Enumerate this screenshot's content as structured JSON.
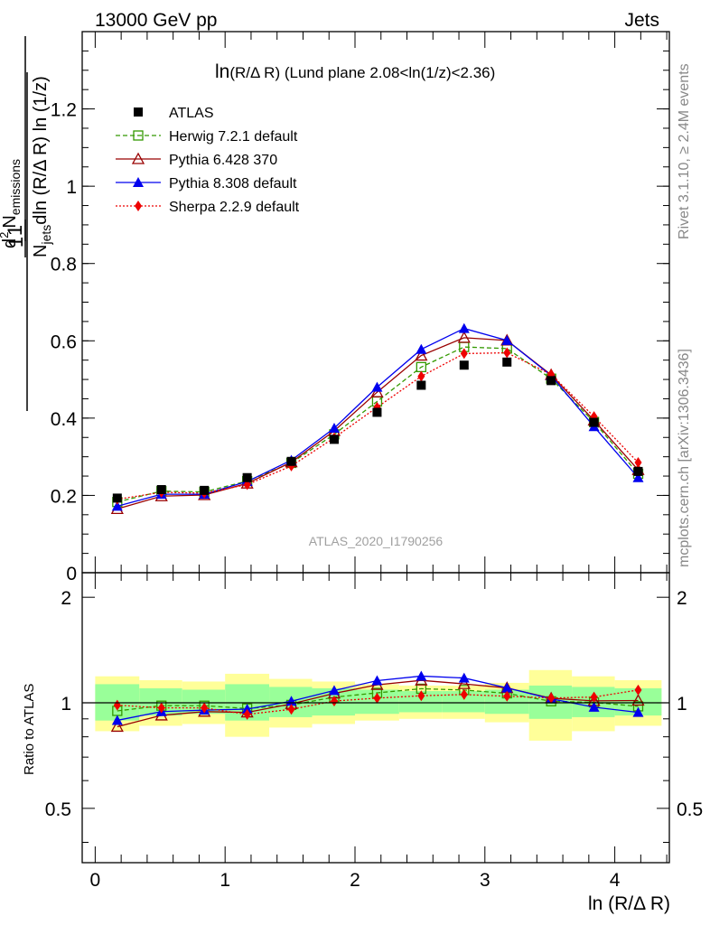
{
  "header": {
    "energy_label": "13000 GeV pp",
    "process_label": "Jets"
  },
  "side_labels": {
    "rivet": "Rivet 3.1.10, ≥ 2.4M events",
    "mcplots": "mcplots.cern.ch [arXiv:1306.3436]"
  },
  "watermark": "ATLAS_2020_I1790256",
  "top_title": {
    "main": "ln",
    "arg": "(R/Δ R)",
    "rest": " (Lund plane 2.08<ln(1/z)<2.36)"
  },
  "y_axis_label": {
    "one": "1",
    "d2": "d",
    "d2_sup": "2",
    "n": "N",
    "n_sub": "emissions",
    "njets": "N",
    "njets_sub": "jets",
    "den_rest": "dln (R/Δ R) ln (1/z)"
  },
  "ratio_y_label": "Ratio to ATLAS",
  "x_axis_label": "ln (R/Δ R)",
  "colors": {
    "atlas": "#000000",
    "herwig": "#339900",
    "pythia6": "#990000",
    "pythia8": "#0000ee",
    "sherpa": "#ee0000",
    "band_inner": "#99ff99",
    "band_outer": "#ffff99"
  },
  "chart_data": {
    "type": "line",
    "xlabel": "ln (R/Δ R)",
    "xlim": [
      -0.1,
      4.42
    ],
    "main_ylim": [
      0,
      1.4
    ],
    "ratio_ylim": [
      0.35,
      2.35
    ],
    "main_yticks": [
      "0",
      "0.2",
      "0.4",
      "0.6",
      "0.8",
      "1",
      "1.2"
    ],
    "main_ytick_values": [
      0,
      0.2,
      0.4,
      0.6,
      0.8,
      1.0,
      1.2
    ],
    "ratio_yticks": [
      "0.5",
      "1",
      "2"
    ],
    "ratio_ytick_values": [
      0.5,
      1,
      2
    ],
    "xticks": [
      "0",
      "1",
      "2",
      "3",
      "4"
    ],
    "xtick_values": [
      0,
      1,
      2,
      3,
      4
    ],
    "x": [
      0.17,
      0.51,
      0.84,
      1.17,
      1.51,
      1.84,
      2.17,
      2.51,
      2.84,
      3.17,
      3.51,
      3.84,
      4.18
    ],
    "bin_edges": [
      0.0,
      0.34,
      0.67,
      1.0,
      1.34,
      1.67,
      2.0,
      2.34,
      2.67,
      3.0,
      3.34,
      3.67,
      4.0,
      4.36
    ],
    "band_inner": [
      [
        0.89,
        1.13
      ],
      [
        0.92,
        1.1
      ],
      [
        0.93,
        1.09
      ],
      [
        0.89,
        1.13
      ],
      [
        0.91,
        1.11
      ],
      [
        0.92,
        1.1
      ],
      [
        0.93,
        1.09
      ],
      [
        0.94,
        1.08
      ],
      [
        0.94,
        1.08
      ],
      [
        0.93,
        1.09
      ],
      [
        0.9,
        1.12
      ],
      [
        0.91,
        1.11
      ],
      [
        0.92,
        1.1
      ]
    ],
    "band_outer": [
      [
        0.83,
        1.19
      ],
      [
        0.86,
        1.16
      ],
      [
        0.87,
        1.15
      ],
      [
        0.8,
        1.21
      ],
      [
        0.85,
        1.17
      ],
      [
        0.87,
        1.15
      ],
      [
        0.89,
        1.13
      ],
      [
        0.9,
        1.12
      ],
      [
        0.9,
        1.12
      ],
      [
        0.88,
        1.14
      ],
      [
        0.78,
        1.24
      ],
      [
        0.83,
        1.19
      ],
      [
        0.86,
        1.16
      ]
    ],
    "series": [
      {
        "name": "ATLAS",
        "key": "atlas",
        "marker": "square",
        "values": [
          0.193,
          0.215,
          0.213,
          0.246,
          0.288,
          0.345,
          0.415,
          0.485,
          0.537,
          0.545,
          0.497,
          0.389,
          0.262
        ]
      },
      {
        "name": "Herwig 7.2.1 default",
        "key": "herwig",
        "marker": "open-square",
        "dash": "5,3",
        "values": [
          0.183,
          0.211,
          0.209,
          0.237,
          0.284,
          0.358,
          0.443,
          0.532,
          0.584,
          0.58,
          0.502,
          0.39,
          0.256
        ]
      },
      {
        "name": "Pythia 6.428 370",
        "key": "pythia6",
        "marker": "open-triangle",
        "dash": "",
        "values": [
          0.165,
          0.198,
          0.201,
          0.231,
          0.286,
          0.367,
          0.467,
          0.562,
          0.608,
          0.601,
          0.512,
          0.394,
          0.266
        ]
      },
      {
        "name": "Pythia 8.308 default",
        "key": "pythia8",
        "marker": "triangle",
        "dash": "",
        "values": [
          0.172,
          0.203,
          0.203,
          0.236,
          0.291,
          0.374,
          0.48,
          0.578,
          0.632,
          0.601,
          0.51,
          0.378,
          0.246
        ]
      },
      {
        "name": "Sherpa 2.2.9 default",
        "key": "sherpa",
        "marker": "diamond",
        "dash": "2,2",
        "values": [
          0.19,
          0.208,
          0.206,
          0.228,
          0.276,
          0.349,
          0.428,
          0.508,
          0.567,
          0.569,
          0.513,
          0.404,
          0.285
        ]
      }
    ]
  }
}
